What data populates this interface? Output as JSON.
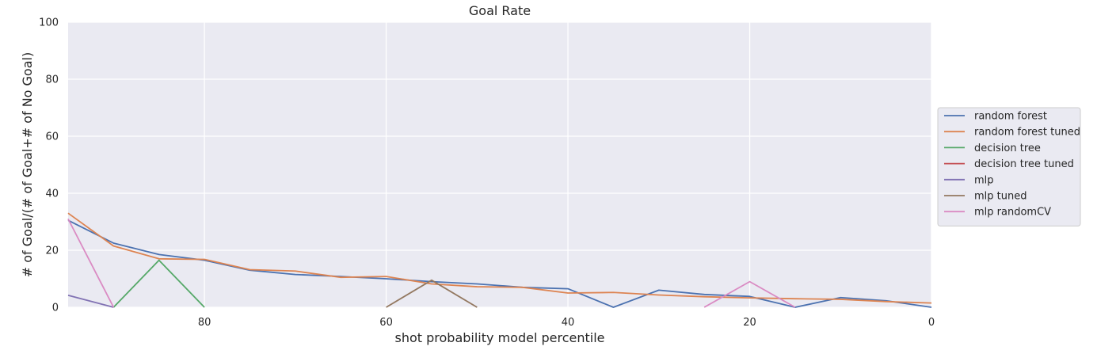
{
  "chart_data": {
    "type": "line",
    "title": "Goal Rate",
    "xlabel": "shot probability model percentile",
    "ylabel": "# of Goal/(# of Goal+# of No Goal)",
    "xlim": [
      95,
      0
    ],
    "ylim": [
      0,
      100
    ],
    "x_inverted": true,
    "xticks": [
      80,
      60,
      40,
      20,
      0
    ],
    "yticks": [
      0,
      20,
      40,
      60,
      80,
      100
    ],
    "grid": true,
    "legend_placement": "outside-right",
    "background_color": "#eaeaf2",
    "x": [
      95,
      90,
      85,
      80,
      75,
      70,
      65,
      60,
      55,
      50,
      45,
      40,
      35,
      30,
      25,
      20,
      15,
      10,
      5,
      0
    ],
    "series": [
      {
        "name": "random forest",
        "color": "#4c72b0",
        "values": [
          30.5,
          22.5,
          18.5,
          16.5,
          13.0,
          11.5,
          10.8,
          10.0,
          9.0,
          8.2,
          7.0,
          6.5,
          0.0,
          6.0,
          4.5,
          3.8,
          0.0,
          3.4,
          2.3,
          0.0
        ]
      },
      {
        "name": "random forest tuned",
        "color": "#dd8452",
        "values": [
          33.0,
          21.5,
          17.0,
          16.8,
          13.2,
          12.7,
          10.5,
          10.8,
          8.2,
          7.2,
          7.0,
          5.0,
          5.2,
          4.3,
          3.7,
          3.3,
          3.0,
          2.8,
          2.0,
          1.5
        ]
      },
      {
        "name": "decision tree",
        "color": "#55a868",
        "values": [
          null,
          0.0,
          16.5,
          0.0,
          null,
          null,
          null,
          null,
          null,
          null,
          null,
          null,
          null,
          null,
          null,
          null,
          null,
          null,
          null,
          null
        ]
      },
      {
        "name": "decision tree tuned",
        "color": "#c44e52",
        "values": [
          null,
          null,
          null,
          null,
          null,
          null,
          null,
          null,
          null,
          null,
          null,
          null,
          null,
          null,
          null,
          null,
          null,
          null,
          null,
          null
        ]
      },
      {
        "name": "mlp",
        "color": "#8172b3",
        "values": [
          4.2,
          0.0,
          null,
          null,
          null,
          null,
          null,
          null,
          null,
          null,
          null,
          null,
          null,
          null,
          null,
          null,
          null,
          null,
          null,
          null
        ]
      },
      {
        "name": "mlp tuned",
        "color": "#937860",
        "values": [
          null,
          null,
          null,
          null,
          null,
          null,
          null,
          0.0,
          9.5,
          0.0,
          null,
          null,
          null,
          null,
          null,
          null,
          null,
          null,
          null,
          null
        ]
      },
      {
        "name": "mlp randomCV",
        "color": "#da8bc3",
        "values": [
          31.0,
          0.0,
          null,
          null,
          null,
          null,
          null,
          null,
          null,
          null,
          null,
          null,
          null,
          null,
          0.0,
          9.0,
          0.0,
          null,
          null,
          null
        ]
      }
    ]
  }
}
